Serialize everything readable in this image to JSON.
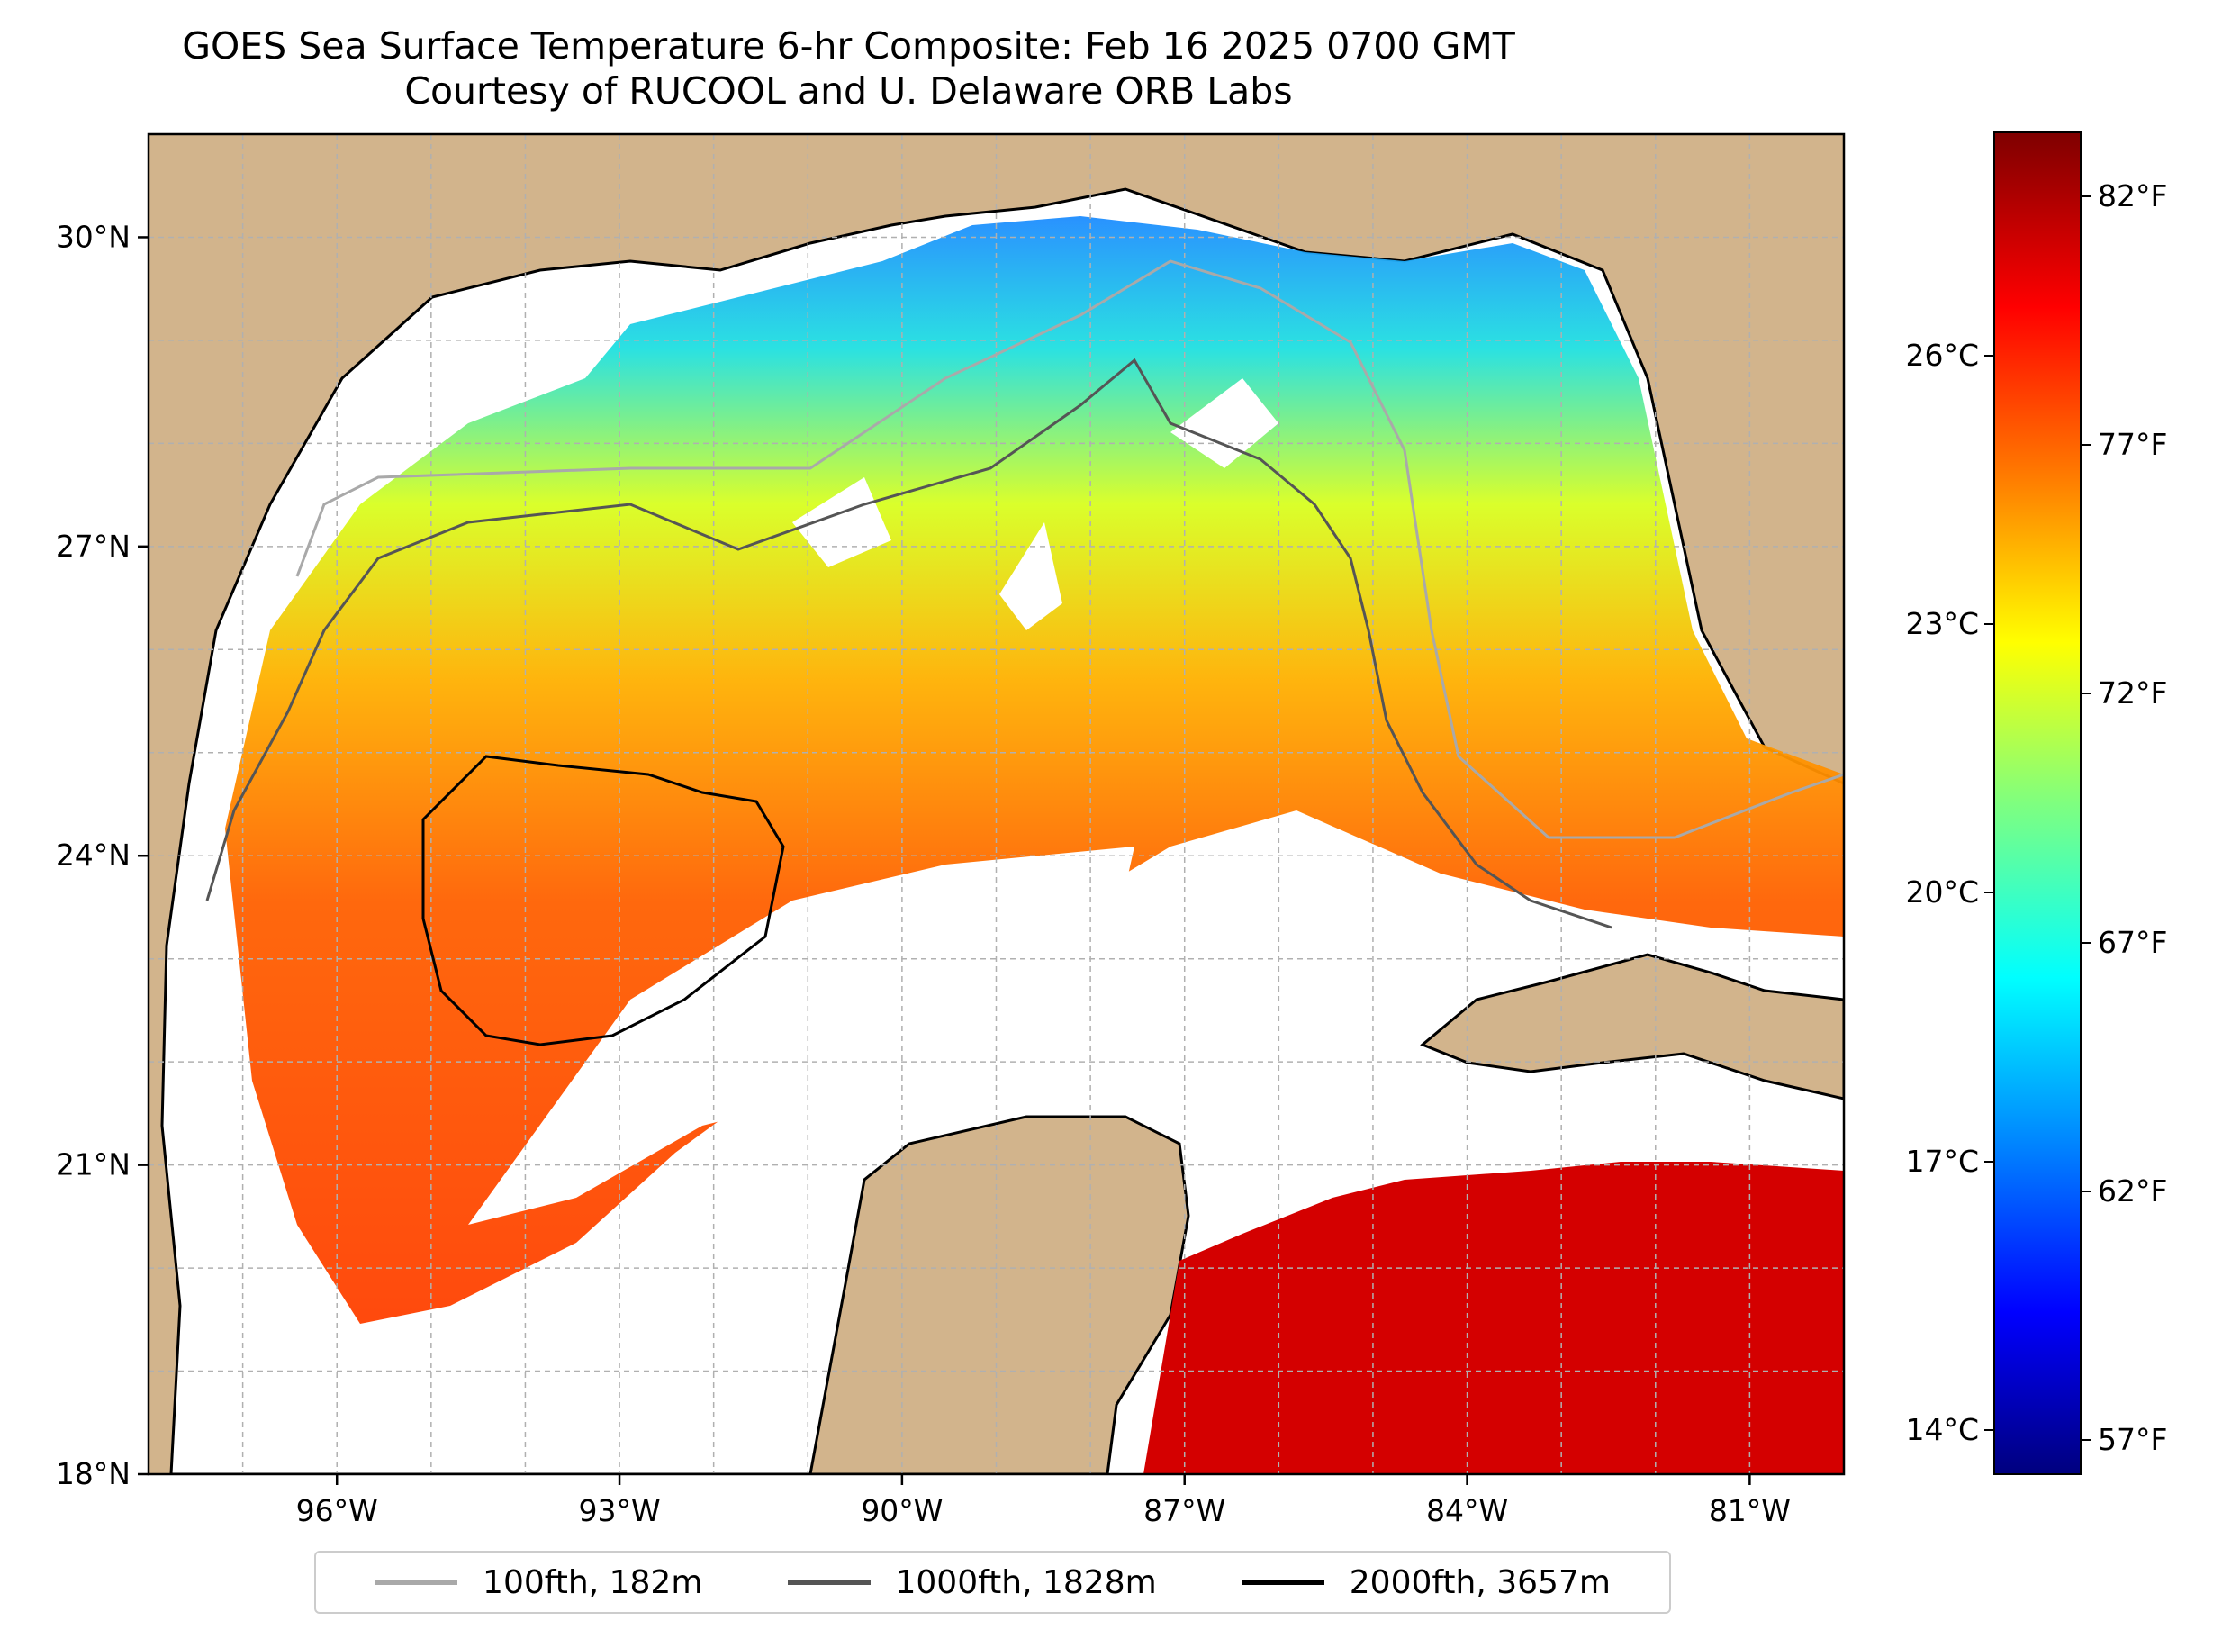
{
  "title": {
    "line1": "GOES Sea Surface Temperature 6-hr Composite: Feb 16 2025 0700 GMT",
    "line2": "Courtesy of RUCOOL and U. Delaware ORB Labs"
  },
  "map": {
    "extent": {
      "lon_min": -98,
      "lon_max": -80,
      "lat_min": 18,
      "lat_max": 31
    },
    "lat_ticks": [
      {
        "value": 30,
        "label": "30°N"
      },
      {
        "value": 27,
        "label": "27°N"
      },
      {
        "value": 24,
        "label": "24°N"
      },
      {
        "value": 21,
        "label": "21°N"
      },
      {
        "value": 18,
        "label": "18°N"
      }
    ],
    "lon_ticks": [
      {
        "value": -96,
        "label": "96°W"
      },
      {
        "value": -93,
        "label": "93°W"
      },
      {
        "value": -90,
        "label": "90°W"
      },
      {
        "value": -87,
        "label": "87°W"
      },
      {
        "value": -84,
        "label": "84°W"
      },
      {
        "value": -81,
        "label": "81°W"
      }
    ],
    "colors": {
      "land": "#d2b48c",
      "no_data": "#ffffff",
      "grid": "#b0b0b0"
    }
  },
  "legend": [
    {
      "label": "100fth, 182m",
      "color": "#a9a9a9"
    },
    {
      "label": "1000fth, 1828m",
      "color": "#555555"
    },
    {
      "label": "2000fth, 3657m",
      "color": "#000000"
    }
  ],
  "colorbar": {
    "colormap": "jet",
    "celsius_ticks": [
      {
        "value": 26,
        "label": "26°C"
      },
      {
        "value": 23,
        "label": "23°C"
      },
      {
        "value": 20,
        "label": "20°C"
      },
      {
        "value": 17,
        "label": "17°C"
      },
      {
        "value": 14,
        "label": "14°C"
      }
    ],
    "fahrenheit_ticks": [
      {
        "value": 82,
        "label": "82°F"
      },
      {
        "value": 77,
        "label": "77°F"
      },
      {
        "value": 72,
        "label": "72°F"
      },
      {
        "value": 67,
        "label": "67°F"
      },
      {
        "value": 62,
        "label": "62°F"
      },
      {
        "value": 57,
        "label": "57°F"
      }
    ]
  }
}
